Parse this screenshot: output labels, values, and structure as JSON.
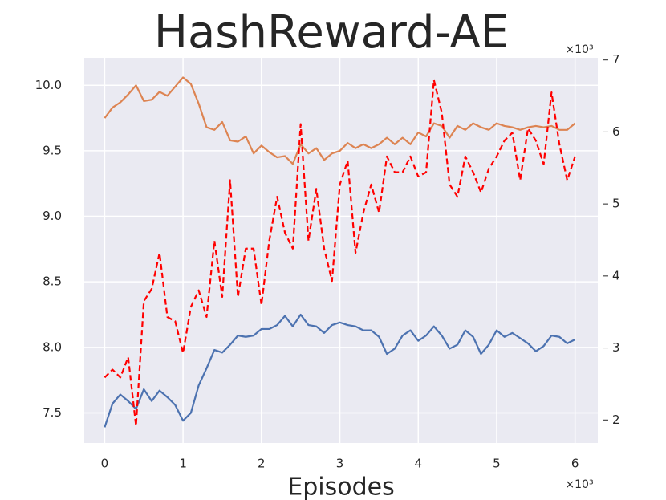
{
  "chart_data": {
    "type": "line",
    "title": "HashReward-AE",
    "xlabel": "Episodes",
    "x_multiplier": "×10³",
    "y2_multiplier": "×10³",
    "x": [
      0,
      0.1,
      0.2,
      0.3,
      0.4,
      0.5,
      0.6,
      0.7,
      0.8,
      0.9,
      1,
      1.1,
      1.2,
      1.3,
      1.4,
      1.5,
      1.6,
      1.7,
      1.8,
      1.9,
      2,
      2.1,
      2.2,
      2.3,
      2.4,
      2.5,
      2.6,
      2.7,
      2.8,
      2.9,
      3,
      3.1,
      3.2,
      3.3,
      3.4,
      3.5,
      3.6,
      3.7,
      3.8,
      3.9,
      4,
      4.1,
      4.2,
      4.3,
      4.4,
      4.5,
      4.6,
      4.7,
      4.8,
      4.9,
      5,
      5.1,
      5.2,
      5.3,
      5.4,
      5.5,
      5.6,
      5.7,
      5.8,
      5.9,
      6
    ],
    "xlim": [
      -0.26,
      6.29
    ],
    "xticks": [
      0,
      1,
      2,
      3,
      4,
      5,
      6
    ],
    "ylim": [
      7.27,
      10.21
    ],
    "yticks": [
      {
        "value": 7.5,
        "label": "7.5"
      },
      {
        "value": 8,
        "label": "8.0"
      },
      {
        "value": 8.5,
        "label": "8.5"
      },
      {
        "value": 9,
        "label": "9.0"
      },
      {
        "value": 9.5,
        "label": "9.5"
      },
      {
        "value": 10,
        "label": "10.0"
      }
    ],
    "y2lim": [
      1.68,
      7.03
    ],
    "y2ticks": [
      2,
      3,
      4,
      5,
      6,
      7
    ],
    "grid": true,
    "series": [
      {
        "color": "#4c72b0",
        "axis": "y",
        "dashed": false,
        "values": [
          7.39,
          7.57,
          7.64,
          7.59,
          7.53,
          7.68,
          7.59,
          7.67,
          7.62,
          7.56,
          7.44,
          7.5,
          7.71,
          7.84,
          7.98,
          7.96,
          8.02,
          8.09,
          8.08,
          8.09,
          8.14,
          8.14,
          8.17,
          8.24,
          8.16,
          8.25,
          8.17,
          8.16,
          8.11,
          8.17,
          8.19,
          8.17,
          8.16,
          8.13,
          8.13,
          8.08,
          7.95,
          7.99,
          8.09,
          8.13,
          8.05,
          8.09,
          8.16,
          8.09,
          7.99,
          8.02,
          8.13,
          8.08,
          7.95,
          8.02,
          8.13,
          8.08,
          8.11,
          8.07,
          8.03,
          7.97,
          8.01,
          8.09,
          8.08,
          8.03,
          8.06
        ]
      },
      {
        "color": "#dd8452",
        "axis": "y",
        "dashed": false,
        "values": [
          9.75,
          9.83,
          9.87,
          9.93,
          10,
          9.88,
          9.89,
          9.95,
          9.92,
          9.99,
          10.06,
          10.01,
          9.86,
          9.68,
          9.66,
          9.72,
          9.58,
          9.57,
          9.61,
          9.48,
          9.54,
          9.49,
          9.45,
          9.46,
          9.4,
          9.55,
          9.48,
          9.52,
          9.43,
          9.48,
          9.5,
          9.56,
          9.52,
          9.55,
          9.52,
          9.55,
          9.6,
          9.55,
          9.6,
          9.55,
          9.64,
          9.61,
          9.71,
          9.69,
          9.6,
          9.69,
          9.66,
          9.71,
          9.68,
          9.66,
          9.71,
          9.69,
          9.68,
          9.66,
          9.68,
          9.69,
          9.68,
          9.69,
          9.66,
          9.66,
          9.71
        ]
      },
      {
        "color": "#ff0000",
        "axis": "y2",
        "dashed": true,
        "values": [
          2.59,
          2.7,
          2.59,
          2.87,
          1.92,
          3.65,
          3.82,
          4.32,
          3.43,
          3.37,
          2.93,
          3.57,
          3.8,
          3.43,
          4.49,
          3.71,
          5.33,
          3.71,
          4.38,
          4.38,
          3.6,
          4.49,
          5.1,
          4.6,
          4.38,
          6.11,
          4.49,
          5.21,
          4.38,
          3.93,
          5.27,
          5.6,
          4.32,
          4.88,
          5.27,
          4.88,
          5.66,
          5.44,
          5.44,
          5.66,
          5.38,
          5.44,
          6.72,
          6.27,
          5.27,
          5.1,
          5.66,
          5.44,
          5.16,
          5.49,
          5.66,
          5.88,
          5.99,
          5.33,
          6.05,
          5.88,
          5.55,
          6.55,
          5.83,
          5.33,
          5.66
        ]
      }
    ]
  }
}
